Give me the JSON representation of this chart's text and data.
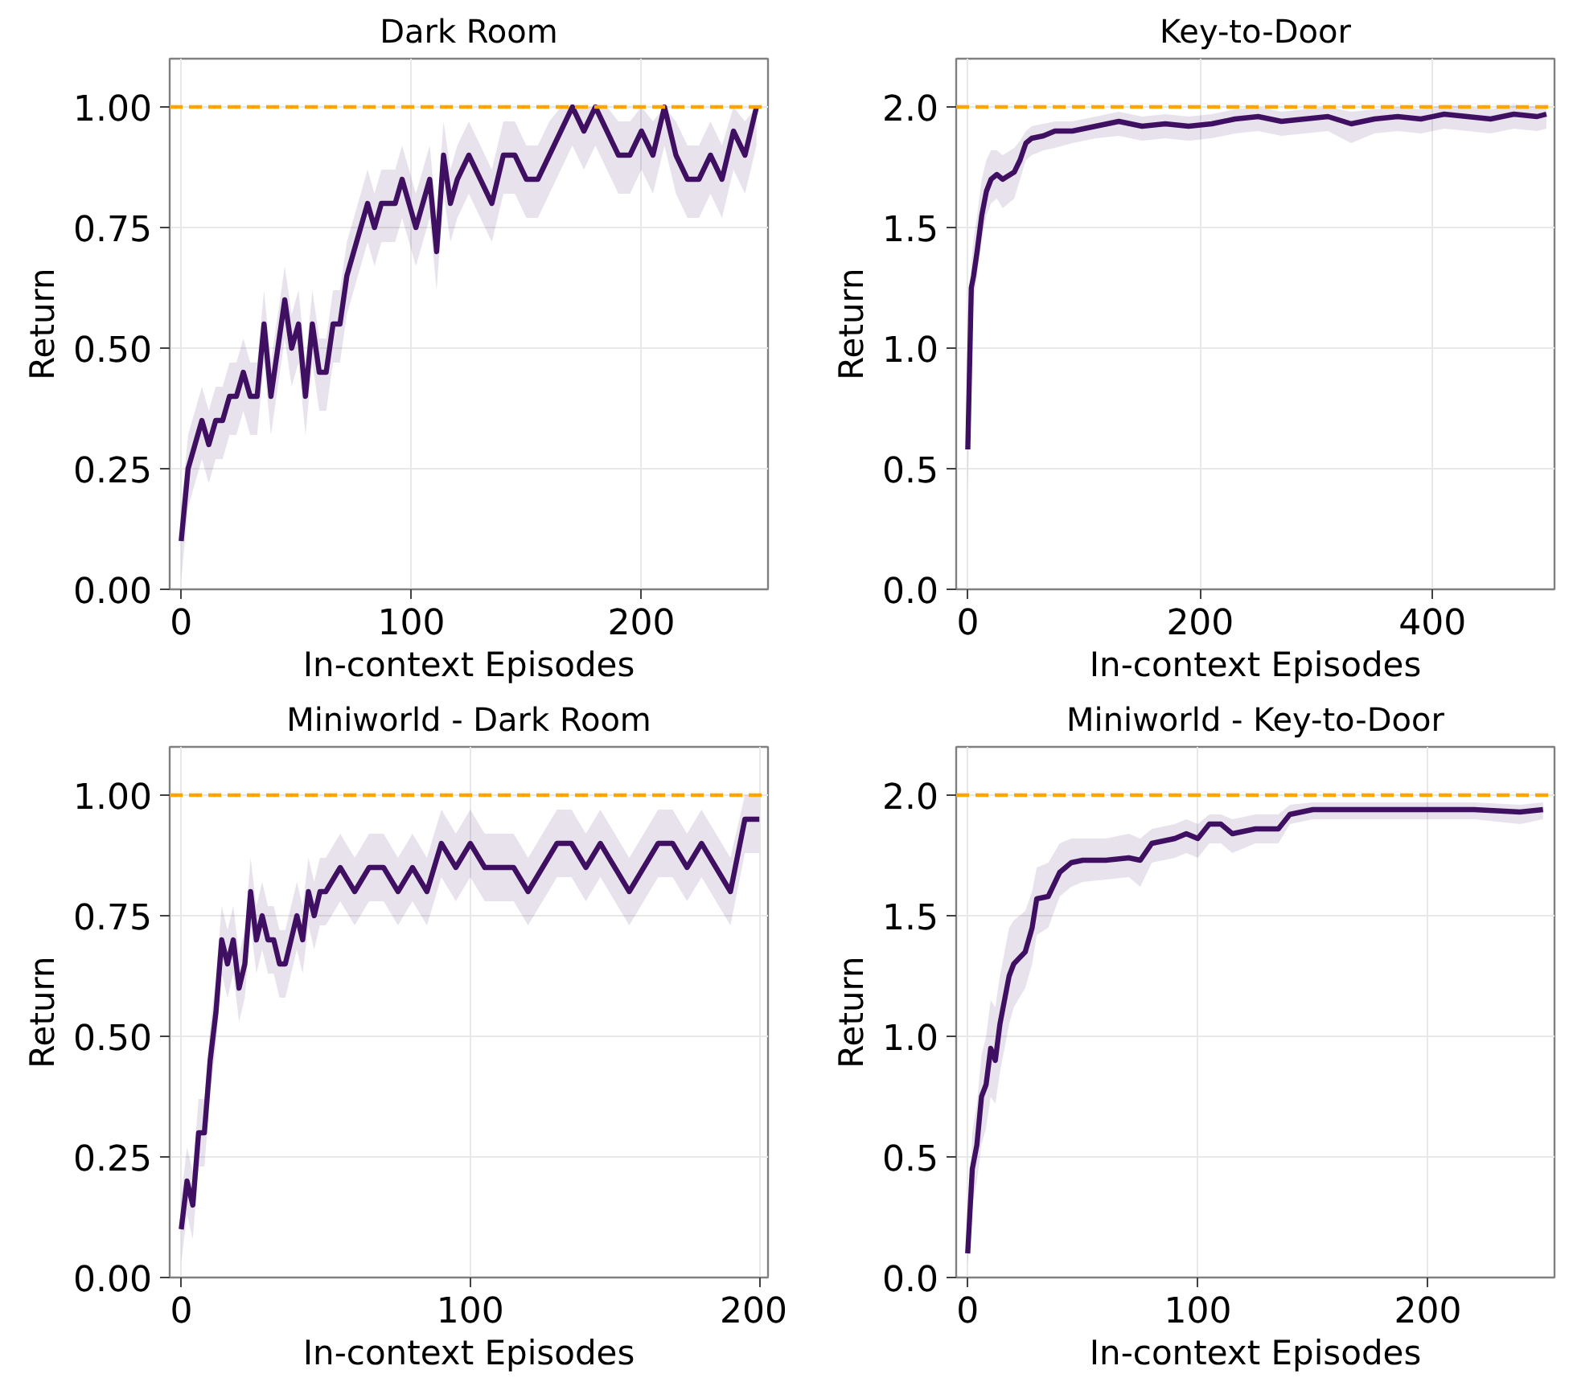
{
  "chart_data": [
    {
      "type": "line",
      "title": "Dark Room",
      "xlabel": "In-context Episodes",
      "ylabel": "Return",
      "grid": true,
      "line_style": "solid",
      "x": [
        0,
        3,
        6,
        9,
        12,
        15,
        18,
        21,
        24,
        27,
        30,
        33,
        36,
        39,
        42,
        45,
        48,
        51,
        54,
        57,
        60,
        63,
        66,
        69,
        72,
        75,
        78,
        81,
        84,
        87,
        90,
        93,
        96,
        99,
        102,
        105,
        108,
        111,
        114,
        117,
        120,
        125,
        130,
        135,
        140,
        145,
        150,
        155,
        160,
        165,
        170,
        175,
        180,
        185,
        190,
        195,
        200,
        205,
        210,
        215,
        220,
        225,
        230,
        235,
        240,
        245,
        250
      ],
      "series": [
        {
          "color": "#3f0f62",
          "values": [
            0.1,
            0.25,
            0.3,
            0.35,
            0.3,
            0.35,
            0.35,
            0.4,
            0.4,
            0.45,
            0.4,
            0.4,
            0.55,
            0.4,
            0.5,
            0.6,
            0.5,
            0.55,
            0.4,
            0.55,
            0.45,
            0.45,
            0.55,
            0.55,
            0.65,
            0.7,
            0.75,
            0.8,
            0.75,
            0.8,
            0.8,
            0.8,
            0.85,
            0.8,
            0.75,
            0.8,
            0.85,
            0.7,
            0.9,
            0.8,
            0.85,
            0.9,
            0.85,
            0.8,
            0.9,
            0.9,
            0.85,
            0.85,
            0.9,
            0.95,
            1.0,
            0.95,
            1.0,
            0.95,
            0.9,
            0.9,
            0.95,
            0.9,
            1.0,
            0.9,
            0.85,
            0.85,
            0.9,
            0.85,
            0.95,
            0.9,
            1.0
          ],
          "lower": [
            0.02,
            0.17,
            0.22,
            0.27,
            0.22,
            0.27,
            0.27,
            0.32,
            0.32,
            0.37,
            0.32,
            0.32,
            0.47,
            0.32,
            0.42,
            0.52,
            0.42,
            0.47,
            0.32,
            0.47,
            0.37,
            0.37,
            0.47,
            0.47,
            0.57,
            0.62,
            0.67,
            0.72,
            0.67,
            0.72,
            0.72,
            0.72,
            0.77,
            0.72,
            0.67,
            0.72,
            0.77,
            0.62,
            0.82,
            0.72,
            0.77,
            0.82,
            0.77,
            0.72,
            0.82,
            0.82,
            0.77,
            0.77,
            0.82,
            0.87,
            0.92,
            0.87,
            0.92,
            0.87,
            0.82,
            0.82,
            0.87,
            0.82,
            0.92,
            0.82,
            0.77,
            0.77,
            0.82,
            0.77,
            0.87,
            0.82,
            0.92
          ],
          "upper": [
            0.17,
            0.32,
            0.37,
            0.42,
            0.37,
            0.42,
            0.42,
            0.47,
            0.47,
            0.52,
            0.47,
            0.47,
            0.62,
            0.47,
            0.57,
            0.67,
            0.57,
            0.62,
            0.47,
            0.62,
            0.52,
            0.52,
            0.62,
            0.62,
            0.72,
            0.77,
            0.82,
            0.87,
            0.82,
            0.87,
            0.87,
            0.87,
            0.92,
            0.87,
            0.82,
            0.87,
            0.92,
            0.77,
            0.97,
            0.87,
            0.92,
            0.97,
            0.92,
            0.87,
            0.97,
            0.97,
            0.92,
            0.92,
            0.97,
            1.0,
            1.0,
            1.0,
            1.0,
            1.0,
            0.97,
            0.97,
            1.0,
            0.97,
            1.0,
            0.97,
            0.92,
            0.92,
            0.97,
            0.92,
            1.0,
            0.97,
            1.0
          ]
        }
      ],
      "xlim": [
        -5,
        255
      ],
      "xticks": [
        0,
        100,
        200
      ],
      "ylim": [
        0,
        1.1
      ],
      "yticks": [
        {
          "value": 0,
          "label": "0.00"
        },
        {
          "value": 0.25,
          "label": "0.25"
        },
        {
          "value": 0.5,
          "label": "0.50"
        },
        {
          "value": 0.75,
          "label": "0.75"
        },
        {
          "value": 1,
          "label": "1.00"
        }
      ],
      "ref_lines": [
        {
          "axis": "y",
          "value": 1,
          "color": "#ffa500",
          "line_style": "dashed"
        }
      ]
    },
    {
      "type": "line",
      "title": "Key-to-Door",
      "xlabel": "In-context Episodes",
      "ylabel": "Return",
      "grid": true,
      "line_style": "solid",
      "x": [
        0,
        3,
        5,
        8,
        12,
        16,
        20,
        25,
        30,
        40,
        45,
        50,
        55,
        65,
        75,
        90,
        110,
        130,
        150,
        170,
        190,
        210,
        230,
        250,
        270,
        290,
        310,
        330,
        350,
        370,
        390,
        410,
        430,
        450,
        470,
        490,
        498
      ],
      "series": [
        {
          "color": "#3f0f62",
          "values": [
            0.58,
            1.25,
            1.3,
            1.4,
            1.55,
            1.65,
            1.7,
            1.72,
            1.7,
            1.73,
            1.78,
            1.85,
            1.87,
            1.88,
            1.9,
            1.9,
            1.92,
            1.94,
            1.92,
            1.93,
            1.92,
            1.93,
            1.95,
            1.96,
            1.94,
            1.95,
            1.96,
            1.93,
            1.95,
            1.96,
            1.95,
            1.97,
            1.96,
            1.95,
            1.97,
            1.96,
            1.97
          ],
          "lower": [
            0.4,
            1.1,
            1.2,
            1.3,
            1.45,
            1.55,
            1.6,
            1.62,
            1.58,
            1.62,
            1.7,
            1.78,
            1.8,
            1.82,
            1.83,
            1.85,
            1.87,
            1.88,
            1.86,
            1.87,
            1.86,
            1.87,
            1.89,
            1.9,
            1.88,
            1.89,
            1.9,
            1.85,
            1.89,
            1.9,
            1.89,
            1.91,
            1.9,
            1.89,
            1.91,
            1.9,
            1.91
          ],
          "upper": [
            0.75,
            1.35,
            1.45,
            1.55,
            1.7,
            1.78,
            1.82,
            1.82,
            1.8,
            1.83,
            1.86,
            1.9,
            1.92,
            1.93,
            1.94,
            1.94,
            1.96,
            1.98,
            1.96,
            1.97,
            1.96,
            1.97,
            1.99,
            2.0,
            1.98,
            1.99,
            2.0,
            1.98,
            1.99,
            2.0,
            1.99,
            2.01,
            2.0,
            1.99,
            2.01,
            2.0,
            2.01
          ]
        }
      ],
      "xlim": [
        -10,
        505
      ],
      "xticks": [
        0,
        200,
        400
      ],
      "ylim": [
        0,
        2.2
      ],
      "yticks": [
        {
          "value": 0,
          "label": "0.0"
        },
        {
          "value": 0.5,
          "label": "0.5"
        },
        {
          "value": 1,
          "label": "1.0"
        },
        {
          "value": 1.5,
          "label": "1.5"
        },
        {
          "value": 2,
          "label": "2.0"
        }
      ],
      "ref_lines": [
        {
          "axis": "y",
          "value": 2,
          "color": "#ffa500",
          "line_style": "dashed"
        }
      ]
    },
    {
      "type": "line",
      "title": "Miniworld - Dark Room",
      "xlabel": "In-context Episodes",
      "ylabel": "Return",
      "grid": true,
      "line_style": "solid",
      "x": [
        0,
        2,
        4,
        6,
        8,
        10,
        12,
        14,
        16,
        18,
        20,
        22,
        24,
        26,
        28,
        30,
        32,
        34,
        36,
        38,
        40,
        42,
        44,
        46,
        48,
        50,
        55,
        60,
        65,
        70,
        75,
        80,
        85,
        90,
        95,
        100,
        105,
        110,
        115,
        120,
        125,
        130,
        135,
        140,
        145,
        150,
        155,
        160,
        165,
        170,
        175,
        180,
        185,
        190,
        195,
        200
      ],
      "series": [
        {
          "color": "#3f0f62",
          "values": [
            0.1,
            0.2,
            0.15,
            0.3,
            0.3,
            0.45,
            0.55,
            0.7,
            0.65,
            0.7,
            0.6,
            0.65,
            0.8,
            0.7,
            0.75,
            0.7,
            0.7,
            0.65,
            0.65,
            0.7,
            0.75,
            0.7,
            0.8,
            0.75,
            0.8,
            0.8,
            0.85,
            0.8,
            0.85,
            0.85,
            0.8,
            0.85,
            0.8,
            0.9,
            0.85,
            0.9,
            0.85,
            0.85,
            0.85,
            0.8,
            0.85,
            0.9,
            0.9,
            0.85,
            0.9,
            0.85,
            0.8,
            0.85,
            0.9,
            0.9,
            0.85,
            0.9,
            0.85,
            0.8,
            0.95,
            0.95
          ],
          "lower": [
            0.03,
            0.13,
            0.08,
            0.23,
            0.23,
            0.38,
            0.48,
            0.63,
            0.58,
            0.63,
            0.53,
            0.58,
            0.73,
            0.63,
            0.68,
            0.63,
            0.63,
            0.58,
            0.58,
            0.63,
            0.68,
            0.63,
            0.73,
            0.68,
            0.73,
            0.73,
            0.78,
            0.73,
            0.78,
            0.78,
            0.73,
            0.78,
            0.73,
            0.83,
            0.78,
            0.83,
            0.78,
            0.78,
            0.78,
            0.73,
            0.78,
            0.83,
            0.83,
            0.78,
            0.83,
            0.78,
            0.73,
            0.78,
            0.83,
            0.83,
            0.78,
            0.83,
            0.78,
            0.73,
            0.88,
            0.88
          ],
          "upper": [
            0.17,
            0.27,
            0.22,
            0.37,
            0.37,
            0.52,
            0.62,
            0.77,
            0.72,
            0.77,
            0.67,
            0.72,
            0.87,
            0.77,
            0.82,
            0.77,
            0.77,
            0.72,
            0.72,
            0.77,
            0.82,
            0.77,
            0.87,
            0.82,
            0.87,
            0.87,
            0.92,
            0.87,
            0.92,
            0.92,
            0.87,
            0.92,
            0.87,
            0.97,
            0.92,
            0.97,
            0.92,
            0.92,
            0.92,
            0.87,
            0.92,
            0.97,
            0.97,
            0.92,
            0.97,
            0.92,
            0.87,
            0.92,
            0.97,
            0.97,
            0.92,
            0.97,
            0.92,
            0.87,
            1.0,
            1.0
          ]
        }
      ],
      "xlim": [
        -4,
        203
      ],
      "xticks": [
        0,
        100,
        200
      ],
      "ylim": [
        0,
        1.1
      ],
      "yticks": [
        {
          "value": 0,
          "label": "0.00"
        },
        {
          "value": 0.25,
          "label": "0.25"
        },
        {
          "value": 0.5,
          "label": "0.50"
        },
        {
          "value": 0.75,
          "label": "0.75"
        },
        {
          "value": 1,
          "label": "1.00"
        }
      ],
      "ref_lines": [
        {
          "axis": "y",
          "value": 1,
          "color": "#ffa500",
          "line_style": "dashed"
        }
      ]
    },
    {
      "type": "line",
      "title": "Miniworld - Key-to-Door",
      "xlabel": "In-context Episodes",
      "ylabel": "Return",
      "grid": true,
      "line_style": "solid",
      "x": [
        0,
        2,
        4,
        6,
        8,
        10,
        12,
        14,
        16,
        18,
        20,
        25,
        28,
        30,
        35,
        40,
        45,
        50,
        60,
        70,
        75,
        80,
        90,
        95,
        100,
        105,
        110,
        115,
        125,
        135,
        140,
        150,
        180,
        200,
        220,
        240,
        250
      ],
      "series": [
        {
          "color": "#3f0f62",
          "values": [
            0.1,
            0.45,
            0.55,
            0.75,
            0.8,
            0.95,
            0.9,
            1.05,
            1.15,
            1.25,
            1.3,
            1.35,
            1.45,
            1.57,
            1.58,
            1.68,
            1.72,
            1.73,
            1.73,
            1.74,
            1.73,
            1.8,
            1.82,
            1.84,
            1.82,
            1.88,
            1.88,
            1.84,
            1.86,
            1.86,
            1.92,
            1.94,
            1.94,
            1.94,
            1.94,
            1.93,
            1.94
          ],
          "lower": [
            0.05,
            0.3,
            0.4,
            0.55,
            0.62,
            0.75,
            0.72,
            0.85,
            0.95,
            1.05,
            1.12,
            1.2,
            1.3,
            1.42,
            1.45,
            1.58,
            1.62,
            1.64,
            1.65,
            1.66,
            1.62,
            1.72,
            1.74,
            1.76,
            1.74,
            1.8,
            1.8,
            1.76,
            1.8,
            1.8,
            1.88,
            1.9,
            1.9,
            1.9,
            1.9,
            1.88,
            1.9
          ],
          "upper": [
            0.15,
            0.6,
            0.72,
            0.92,
            1.0,
            1.15,
            1.12,
            1.25,
            1.35,
            1.45,
            1.48,
            1.52,
            1.6,
            1.7,
            1.72,
            1.8,
            1.82,
            1.82,
            1.82,
            1.84,
            1.82,
            1.86,
            1.88,
            1.9,
            1.88,
            1.92,
            1.92,
            1.9,
            1.92,
            1.92,
            1.96,
            1.97,
            1.97,
            1.97,
            1.97,
            1.96,
            1.97
          ]
        }
      ],
      "xlim": [
        -5,
        255
      ],
      "xticks": [
        0,
        100,
        200
      ],
      "ylim": [
        0,
        2.2
      ],
      "yticks": [
        {
          "value": 0,
          "label": "0.0"
        },
        {
          "value": 0.5,
          "label": "0.5"
        },
        {
          "value": 1,
          "label": "1.0"
        },
        {
          "value": 1.5,
          "label": "1.5"
        },
        {
          "value": 2,
          "label": "2.0"
        }
      ],
      "ref_lines": [
        {
          "axis": "y",
          "value": 2,
          "color": "#ffa500",
          "line_style": "dashed"
        }
      ]
    }
  ]
}
